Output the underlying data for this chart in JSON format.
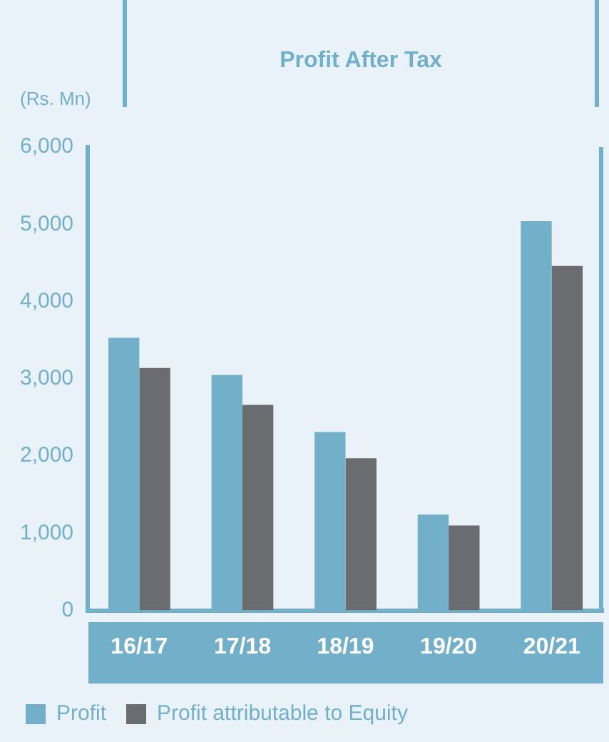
{
  "chart_data": {
    "type": "bar",
    "title": "Profit After Tax",
    "ylabel": "(Rs. Mn)",
    "categories": [
      "16/17",
      "17/18",
      "18/19",
      "19/20",
      "20/21"
    ],
    "series": [
      {
        "name": "Profit",
        "color": "#72b0ca",
        "values": [
          3530,
          3050,
          2310,
          1240,
          5040
        ]
      },
      {
        "name": "Profit attributable to Equity",
        "color": "#6b6c70",
        "values": [
          3140,
          2660,
          1970,
          1100,
          4460
        ]
      }
    ],
    "ylim": [
      0,
      6000
    ],
    "yticks": [
      0,
      {
        "value": 1000,
        "label": "1,000"
      },
      {
        "value": 2000,
        "label": "2,000"
      },
      {
        "value": 3000,
        "label": "3,000"
      },
      {
        "value": 4000,
        "label": "4,000"
      },
      {
        "value": 5000,
        "label": "5,000"
      },
      {
        "value": 6000,
        "label": "6,000"
      }
    ],
    "grid": false,
    "legend": "bottom"
  }
}
